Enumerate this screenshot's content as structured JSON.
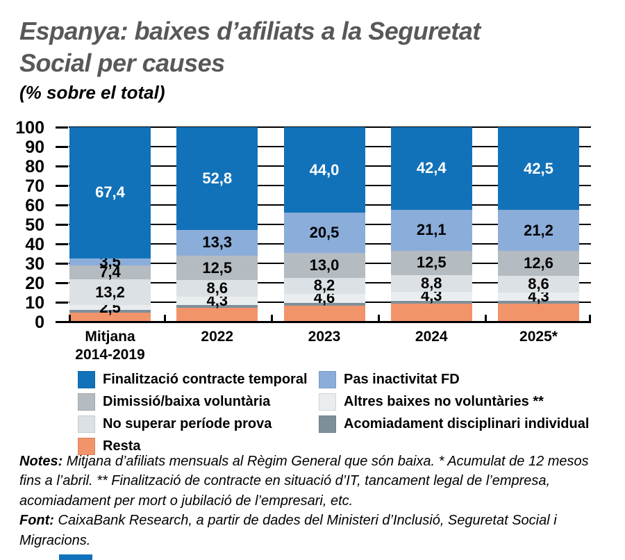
{
  "title": {
    "text": "Espanya: baixes d’afiliats a la Seguretat\nSocial per causes",
    "color": "#57585a"
  },
  "subtitle": "(% sobre el total)",
  "chart_data": {
    "type": "bar",
    "variant": "stacked-vertical",
    "title": "Espanya: baixes d’afiliats a la Seguretat Social per causes",
    "subtitle": "(% sobre el total)",
    "xlabel": "",
    "ylabel": "",
    "ylim": [
      0,
      100
    ],
    "yticks": [
      0,
      10,
      20,
      30,
      40,
      50,
      60,
      70,
      80,
      90,
      100
    ],
    "grid": "horizontal-black-behind-bars",
    "categories": [
      "Mitjana\n2014-2019",
      "2022",
      "2023",
      "2024",
      "2025*"
    ],
    "series": [
      {
        "name": "Resta",
        "color": "#f2946a",
        "values": [
          4.5,
          7.0,
          8.2,
          9.4,
          9.3
        ],
        "labels": [
          "",
          "",
          "",
          "",
          ""
        ],
        "label_color": "#000000",
        "note": "values estimated from bar heights; not labeled in chart"
      },
      {
        "name": "Acomiadament disciplinari individual",
        "color": "#7e8f9a",
        "values": [
          1.5,
          1.5,
          1.5,
          1.5,
          1.5
        ],
        "labels": [
          "",
          "",
          "",
          "",
          ""
        ],
        "label_color": "#000000",
        "note": "values estimated from bar heights; not labeled in chart"
      },
      {
        "name": "Altres baixes no voluntàries **",
        "color": "#e9edef",
        "values": [
          2.5,
          4.3,
          4.6,
          4.3,
          4.3
        ],
        "labels": [
          "2,5",
          "4,3",
          "4,6",
          "4,3",
          "4,3"
        ],
        "label_color": "#000000"
      },
      {
        "name": "No superar període prova",
        "color": "#dce1e5",
        "values": [
          13.2,
          8.6,
          8.2,
          8.8,
          8.6
        ],
        "labels": [
          "13,2",
          "8,6",
          "8,2",
          "8,8",
          "8,6"
        ],
        "label_color": "#000000"
      },
      {
        "name": "Dimissió/baixa voluntària",
        "color": "#b4bbc1",
        "values": [
          7.4,
          12.5,
          13.0,
          12.5,
          12.6
        ],
        "labels": [
          "7,4",
          "12,5",
          "13,0",
          "12,5",
          "12,6"
        ],
        "label_color": "#000000"
      },
      {
        "name": "Pas inactivitat FD",
        "color": "#8badd9",
        "values": [
          3.5,
          13.3,
          20.5,
          21.1,
          21.2
        ],
        "labels": [
          "3,5",
          "13,3",
          "20,5",
          "21,1",
          "21,2"
        ],
        "label_color": "#000000"
      },
      {
        "name": "Finalització contracte temporal",
        "color": "#1272b9",
        "values": [
          67.4,
          52.8,
          44.0,
          42.4,
          42.5
        ],
        "labels": [
          "67,4",
          "52,8",
          "44,0",
          "42,4",
          "42,5"
        ],
        "label_color": "#ffffff"
      }
    ],
    "legend_position": "bottom-two-columns"
  },
  "legend": {
    "columns": [
      [
        {
          "label": "Finalització contracte temporal",
          "color": "#1272b9"
        },
        {
          "label": "Dimissió/baixa voluntària",
          "color": "#b4bbc1"
        },
        {
          "label": "No superar període prova",
          "color": "#dce1e5"
        },
        {
          "label": "Resta",
          "color": "#f2946a"
        }
      ],
      [
        {
          "label": "Pas inactivitat FD",
          "color": "#8badd9"
        },
        {
          "label": "Altres baixes no voluntàries **",
          "color": "#e9edef"
        },
        {
          "label": "Acomiadament disciplinari individual",
          "color": "#7e8f9a"
        }
      ]
    ]
  },
  "notes": {
    "label": "Notes:",
    "text": " Mitjana d’afiliats mensuals al Règim General que són baixa. * Acumulat de 12 mesos fins a l’abril. ** Finalització de contracte en situació d’IT, tancament legal de l’empresa, acomiadament per mort o jubilació de l’empresari, etc."
  },
  "source": {
    "label": "Font:",
    "text": " CaixaBank Research, a partir de dades del Ministeri d’Inclusió, Seguretat Social i Migracions."
  },
  "accent_color": "#1272b9"
}
